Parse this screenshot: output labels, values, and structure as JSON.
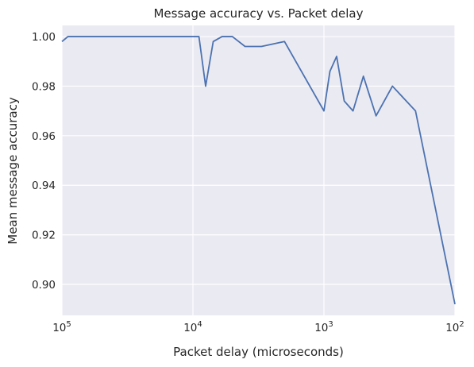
{
  "chart_data": {
    "type": "line",
    "title": "Message accuracy vs. Packet delay",
    "xlabel": "Packet delay (microseconds)",
    "ylabel": "Mean message accuracy",
    "x_scale": "log",
    "x_inverted": true,
    "xlim": [
      100000,
      100
    ],
    "ylim": [
      0.8875,
      1.0045
    ],
    "grid": true,
    "background_color": "#EAEAF2",
    "grid_color": "#FFFFFF",
    "series_color": "#4C72B0",
    "x_ticks": [
      {
        "value": 100000,
        "base": "10",
        "exp": "5"
      },
      {
        "value": 10000,
        "base": "10",
        "exp": "4"
      },
      {
        "value": 1000,
        "base": "10",
        "exp": "3"
      },
      {
        "value": 100,
        "base": "10",
        "exp": "2"
      }
    ],
    "y_ticks": [
      {
        "value": 0.9,
        "label": "0.90"
      },
      {
        "value": 0.92,
        "label": "0.92"
      },
      {
        "value": 0.94,
        "label": "0.94"
      },
      {
        "value": 0.96,
        "label": "0.96"
      },
      {
        "value": 0.98,
        "label": "0.98"
      },
      {
        "value": 1.0,
        "label": "1.00"
      }
    ],
    "series": [
      {
        "x": [
          100000,
          90000,
          9000,
          8000,
          7000,
          6000,
          5000,
          4000,
          3000,
          2000,
          1000,
          900,
          800,
          700,
          600,
          500,
          400,
          300,
          200,
          100
        ],
        "y": [
          0.998,
          1.0,
          1.0,
          0.98,
          0.998,
          1.0,
          1.0,
          0.996,
          0.996,
          0.998,
          0.97,
          0.986,
          0.992,
          0.974,
          0.97,
          0.984,
          0.968,
          0.98,
          0.97,
          0.892
        ]
      }
    ]
  }
}
